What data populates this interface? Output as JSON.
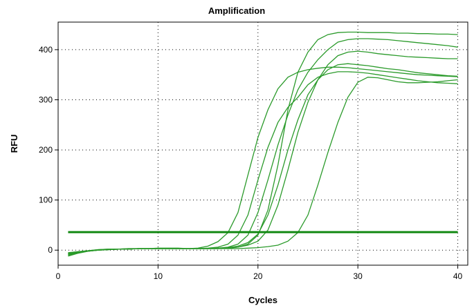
{
  "chart_data": {
    "type": "line",
    "title": "Amplification",
    "xlabel": "Cycles",
    "ylabel": "RFU",
    "xlim": [
      0,
      41
    ],
    "ylim": [
      -30,
      455
    ],
    "xticks": [
      0,
      10,
      20,
      30,
      40
    ],
    "yticks": [
      0,
      100,
      200,
      300,
      400
    ],
    "grid": true,
    "threshold": 36,
    "colors": {
      "curve": "#2a9a2a",
      "threshold": "#118811"
    },
    "cycles": [
      1,
      2,
      3,
      4,
      5,
      6,
      7,
      8,
      9,
      10,
      11,
      12,
      13,
      14,
      15,
      16,
      17,
      18,
      19,
      20,
      21,
      22,
      23,
      24,
      25,
      26,
      27,
      28,
      29,
      30,
      31,
      32,
      33,
      34,
      35,
      36,
      37,
      38,
      39,
      40
    ],
    "series": [
      {
        "values": [
          -10,
          -6,
          -2,
          0,
          1,
          2,
          2,
          3,
          3,
          3,
          3,
          3,
          3,
          4,
          8,
          17,
          35,
          75,
          150,
          225,
          280,
          322,
          345,
          355,
          360,
          363,
          365,
          365,
          364,
          362,
          360,
          358,
          356,
          354,
          352,
          350,
          349,
          348,
          347,
          346
        ]
      },
      {
        "values": [
          -8,
          -4,
          -1,
          1,
          2,
          2,
          3,
          3,
          3,
          4,
          4,
          4,
          3,
          3,
          4,
          6,
          12,
          30,
          70,
          140,
          205,
          255,
          285,
          305,
          330,
          345,
          352,
          356,
          356,
          355,
          353,
          350,
          347,
          344,
          341,
          338,
          336,
          334,
          333,
          332
        ]
      },
      {
        "values": [
          -12,
          -6,
          -2,
          0,
          1,
          2,
          2,
          3,
          3,
          3,
          3,
          3,
          3,
          3,
          3,
          4,
          6,
          12,
          30,
          75,
          140,
          210,
          270,
          320,
          355,
          380,
          400,
          415,
          420,
          422,
          422,
          421,
          420,
          418,
          416,
          414,
          412,
          410,
          408,
          405
        ]
      },
      {
        "values": [
          -5,
          -3,
          -1,
          1,
          2,
          2,
          3,
          3,
          3,
          3,
          3,
          3,
          3,
          3,
          3,
          3,
          4,
          6,
          10,
          18,
          40,
          90,
          160,
          235,
          295,
          340,
          370,
          388,
          395,
          397,
          395,
          392,
          390,
          388,
          386,
          385,
          384,
          383,
          382,
          382
        ]
      },
      {
        "values": [
          -7,
          -4,
          -2,
          0,
          1,
          2,
          2,
          3,
          3,
          3,
          3,
          3,
          3,
          3,
          3,
          4,
          5,
          8,
          15,
          32,
          70,
          130,
          200,
          260,
          310,
          340,
          360,
          370,
          372,
          370,
          368,
          365,
          362,
          360,
          357,
          354,
          352,
          350,
          348,
          347
        ]
      },
      {
        "values": [
          -6,
          -3,
          -1,
          0,
          1,
          2,
          2,
          3,
          3,
          3,
          3,
          3,
          3,
          3,
          3,
          3,
          4,
          6,
          12,
          30,
          80,
          170,
          280,
          355,
          395,
          420,
          430,
          434,
          435,
          435,
          434,
          434,
          434,
          433,
          433,
          432,
          432,
          431,
          431,
          430
        ]
      },
      {
        "values": [
          -9,
          -5,
          -2,
          0,
          1,
          2,
          2,
          3,
          3,
          3,
          3,
          3,
          3,
          3,
          3,
          3,
          3,
          3,
          4,
          5,
          7,
          10,
          18,
          35,
          70,
          130,
          195,
          255,
          305,
          335,
          345,
          344,
          340,
          336,
          334,
          334,
          335,
          336,
          338,
          340
        ]
      }
    ]
  }
}
